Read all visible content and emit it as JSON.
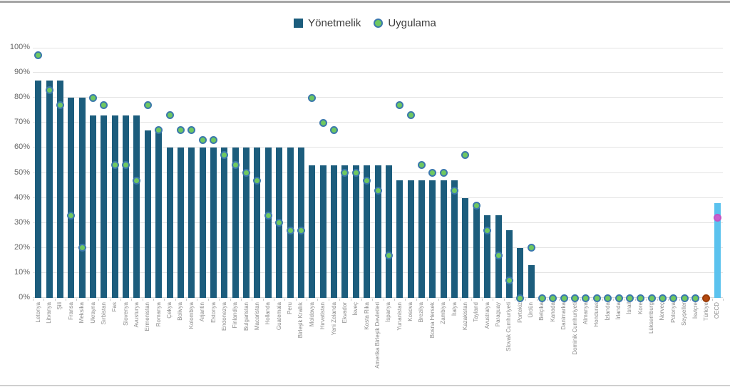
{
  "legend": {
    "items": [
      {
        "label": "Yönetmelik",
        "marker": "square"
      },
      {
        "label": "Uygulama",
        "marker": "circle"
      }
    ]
  },
  "chart_data": {
    "type": "bar",
    "title": "",
    "xlabel": "",
    "ylabel": "",
    "ylim": [
      0,
      100
    ],
    "yticks": [
      0,
      10,
      20,
      30,
      40,
      50,
      60,
      70,
      80,
      90,
      100
    ],
    "ytick_suffix": "%",
    "grid": true,
    "legend_position": "top",
    "categories": [
      "Letonya",
      "Litvanya",
      "Şili",
      "Fransa",
      "Meksika",
      "Ukrayna",
      "Sırbistan",
      "Fas",
      "Slovenya",
      "Avusturya",
      "Ermenistan",
      "Romanya",
      "Çekya",
      "Bolivya",
      "Kolombiya",
      "Arjantin",
      "Estonya",
      "Endonezya",
      "Finlandiya",
      "Bulgaristan",
      "Macaristan",
      "Hollanda",
      "Guatemala",
      "Peru",
      "Birleşik Krallık",
      "Moldavya",
      "Hırvatistan",
      "Yeni Zelanda",
      "Ekvador",
      "İsveç",
      "Kosta Rika",
      "Amerika Birleşik Devletleri",
      "İspanya",
      "Yunanistan",
      "Kosova",
      "Brezilya",
      "Bosna Hersek",
      "Zambiya",
      "İtalya",
      "Kazakistan",
      "Tayland",
      "Avustralya",
      "Paraguay",
      "Slovak Cumhuriyeti",
      "Portekiz",
      "Ürdün",
      "Belçika",
      "Kanada",
      "Danimarka",
      "Dominik Cumhuriyeti",
      "Almanya",
      "Honduras",
      "İzlanda",
      "İrlanda",
      "İsrail",
      "Kore",
      "Lüksemburg",
      "Norveç",
      "Polonya",
      "Seyşeller",
      "İsviçre",
      "Türkiye",
      "OECD"
    ],
    "series": [
      {
        "name": "Yönetmelik",
        "type": "bar",
        "values": [
          87,
          87,
          87,
          80,
          80,
          73,
          73,
          73,
          73,
          73,
          67,
          67,
          60,
          60,
          60,
          60,
          60,
          60,
          60,
          60,
          60,
          60,
          60,
          60,
          60,
          53,
          53,
          53,
          53,
          53,
          53,
          53,
          53,
          47,
          47,
          47,
          47,
          47,
          47,
          40,
          38,
          33,
          33,
          27,
          20,
          13,
          0,
          0,
          0,
          0,
          0,
          0,
          0,
          0,
          0,
          0,
          0,
          0,
          0,
          0,
          0,
          0,
          38
        ]
      },
      {
        "name": "Uygulama",
        "type": "scatter",
        "values": [
          97,
          83,
          77,
          33,
          20,
          80,
          77,
          53,
          53,
          47,
          77,
          67,
          73,
          67,
          67,
          63,
          63,
          57,
          53,
          50,
          47,
          33,
          30,
          27,
          27,
          80,
          70,
          67,
          50,
          50,
          47,
          43,
          17,
          77,
          73,
          53,
          50,
          50,
          43,
          57,
          37,
          27,
          17,
          7,
          0,
          20,
          0,
          0,
          0,
          0,
          0,
          0,
          0,
          0,
          0,
          0,
          0,
          0,
          0,
          0,
          0,
          0,
          32
        ]
      }
    ],
    "overrides": [
      {
        "index": 61,
        "dot_fill": "#b5490f",
        "dot_stroke": "#9a3d0a"
      },
      {
        "index": 62,
        "bar_color": "#5bc2ee",
        "dot_fill": "#ca5fcd",
        "dot_stroke": "#c055c4"
      }
    ]
  },
  "colors": {
    "bar": "#1c5d7d",
    "dot_fill": "#6fc860",
    "dot_stroke": "#3b78ad",
    "gridline": "#e3e3e3",
    "ytick_text": "#666666",
    "xtick_text": "#8c8c8c",
    "legend_text": "#3d3d3d"
  }
}
